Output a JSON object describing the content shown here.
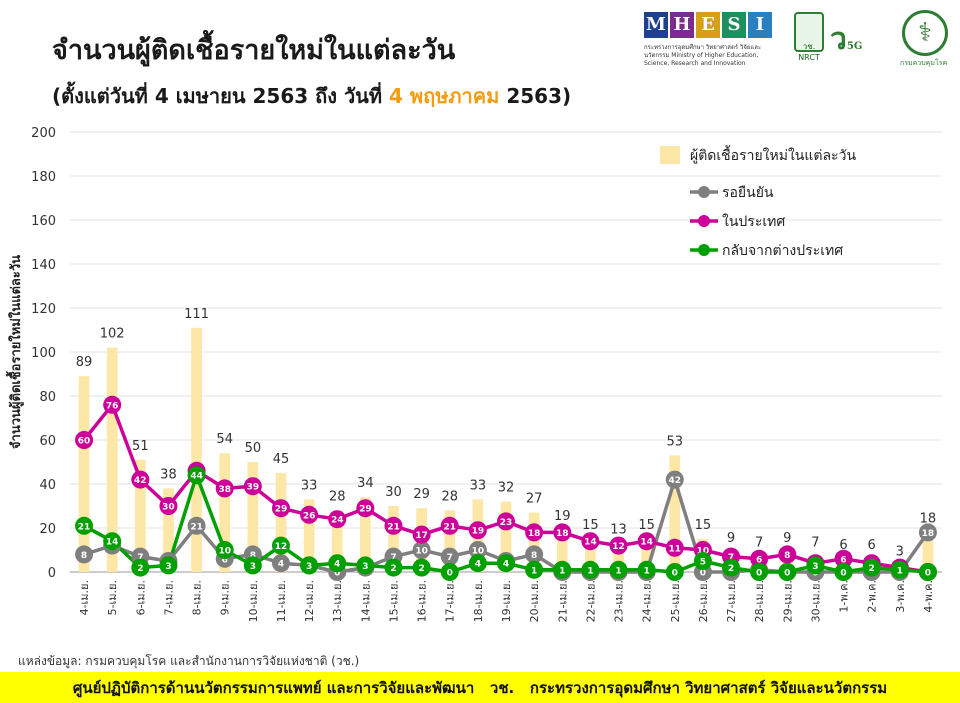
{
  "header": {
    "title": "จำนวนผู้ติดเชื้อรายใหม่ในแต่ละวัน",
    "subtitle_prefix": "(ตั้งแต่วันที่ 4 เมษายน 2563 ถึง วันที่ ",
    "subtitle_highlight": "4 พฤษภาคม",
    "subtitle_suffix": " 2563)"
  },
  "logos": {
    "mhesi_letters": [
      "M",
      "H",
      "E",
      "S",
      "I"
    ],
    "mhesi_colors": [
      "#1f3f8f",
      "#7b2d8e",
      "#d4a017",
      "#1f8f5f",
      "#2a7fc0"
    ],
    "mhesi_caption": "กระทรวงการอุดมศึกษา วิทยาศาสตร์ วิจัยและนวัตกรรม Ministry of Higher Education, Science, Research and Innovation",
    "nrct_text": "วช. NRCT",
    "fiveg_text": "ว",
    "fiveg_small": "5G",
    "ddc_caption": "กรมควบคุมโรค"
  },
  "chart_data": {
    "type": "bar",
    "ylabel": "จำนวนผู้ติดเชื้อรายใหม่ในแต่ละวัน",
    "ylim": [
      0,
      200
    ],
    "yticks": [
      0,
      20,
      40,
      60,
      80,
      100,
      120,
      140,
      160,
      180,
      200
    ],
    "grid": true,
    "legend_position": "top-right",
    "categories": [
      "4-เม.ย.",
      "5-เม.ย.",
      "6-เม.ย.",
      "7-เม.ย.",
      "8-เม.ย.",
      "9-เม.ย.",
      "10-เม.ย.",
      "11-เม.ย.",
      "12-เม.ย.",
      "13-เม.ย.",
      "14-เม.ย.",
      "15-เม.ย.",
      "16-เม.ย.",
      "17-เม.ย.",
      "18-เม.ย.",
      "19-เม.ย.",
      "20-เม.ย.",
      "21-เม.ย.",
      "22-เม.ย.",
      "23-เม.ย.",
      "24-เม.ย.",
      "25-เม.ย.",
      "26-เม.ย.",
      "27-เม.ย.",
      "28-เม.ย.",
      "29-เม.ย.",
      "30-เม.ย.",
      "1-พ.ค.",
      "2-พ.ค.",
      "3-พ.ค.",
      "4-พ.ค."
    ],
    "series": [
      {
        "name": "ผู้ติดเชื้อรายใหม่ในแต่ละวัน",
        "kind": "bar",
        "color": "#fde7a6",
        "values": [
          89,
          102,
          51,
          38,
          111,
          54,
          50,
          45,
          33,
          28,
          34,
          30,
          29,
          28,
          33,
          32,
          27,
          19,
          15,
          13,
          15,
          53,
          15,
          9,
          7,
          9,
          7,
          6,
          6,
          3,
          18
        ]
      },
      {
        "name": "รอยืนยัน",
        "kind": "line",
        "color": "#7f7f7f",
        "values": [
          8,
          12,
          7,
          5,
          21,
          6,
          8,
          4,
          3,
          0,
          2,
          7,
          10,
          7,
          10,
          5,
          8,
          0,
          0,
          0,
          0,
          42,
          0,
          0,
          1,
          0,
          0,
          0,
          0,
          0,
          18
        ]
      },
      {
        "name": "ในประเทศ",
        "kind": "line",
        "color": "#cc0099",
        "values": [
          60,
          76,
          42,
          30,
          46,
          38,
          39,
          29,
          26,
          24,
          29,
          21,
          17,
          21,
          19,
          23,
          18,
          18,
          14,
          12,
          14,
          11,
          10,
          7,
          6,
          8,
          4,
          6,
          4,
          2,
          0
        ]
      },
      {
        "name": "กลับจากต่างประเทศ",
        "kind": "line",
        "color": "#00a000",
        "values": [
          21,
          14,
          2,
          3,
          44,
          10,
          3,
          12,
          3,
          4,
          3,
          2,
          2,
          0,
          4,
          4,
          1,
          1,
          1,
          1,
          1,
          0,
          5,
          2,
          0,
          0,
          3,
          0,
          2,
          1,
          0
        ]
      }
    ]
  },
  "source": "แหล่งข้อมูล: กรมควบคุมโรค และสำนักงานการวิจัยแห่งชาติ (วช.)",
  "footer": "ศูนย์ปฏิบัติการด้านนวัตกรรมการแพทย์ และการวิจัยและพัฒนา   วช.   กระทรวงการอุดมศึกษา วิทยาศาสตร์ วิจัยและนวัตกรรม"
}
